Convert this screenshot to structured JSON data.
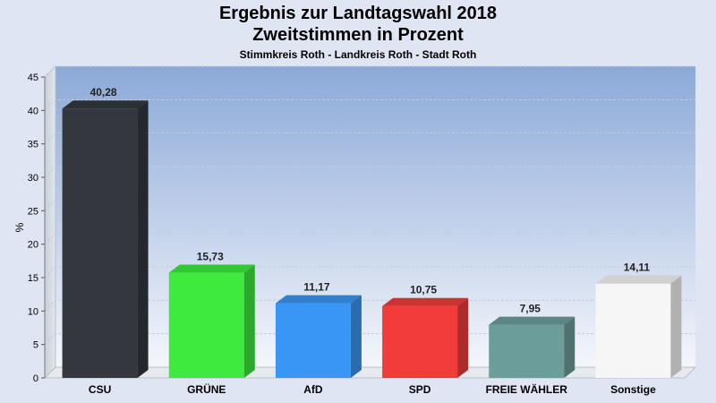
{
  "chart_data": {
    "type": "bar",
    "title": "Ergebnis zur Landtagswahl 2018",
    "subtitle": "Zweitstimmen in Prozent",
    "subsubtitle": "Stimmkreis Roth - Landkreis Roth - Stadt Roth",
    "ylabel": "%",
    "xlabel": "",
    "ylim": [
      0,
      45
    ],
    "yticks": [
      0,
      5,
      10,
      15,
      20,
      25,
      30,
      35,
      40,
      45
    ],
    "categories": [
      "CSU",
      "GRÜNE",
      "AfD",
      "SPD",
      "FREIE WÄHLER",
      "Sonstige"
    ],
    "values": [
      40.28,
      15.73,
      11.17,
      10.75,
      7.95,
      14.11
    ],
    "value_labels": [
      "40,28",
      "15,73",
      "11,17",
      "10,75",
      "7,95",
      "14,11"
    ],
    "colors": [
      "#34373d",
      "#3dea3d",
      "#3a96f4",
      "#f23c3c",
      "#6b9e9a",
      "#f6f6f6"
    ],
    "grid": true,
    "legend": "none"
  }
}
